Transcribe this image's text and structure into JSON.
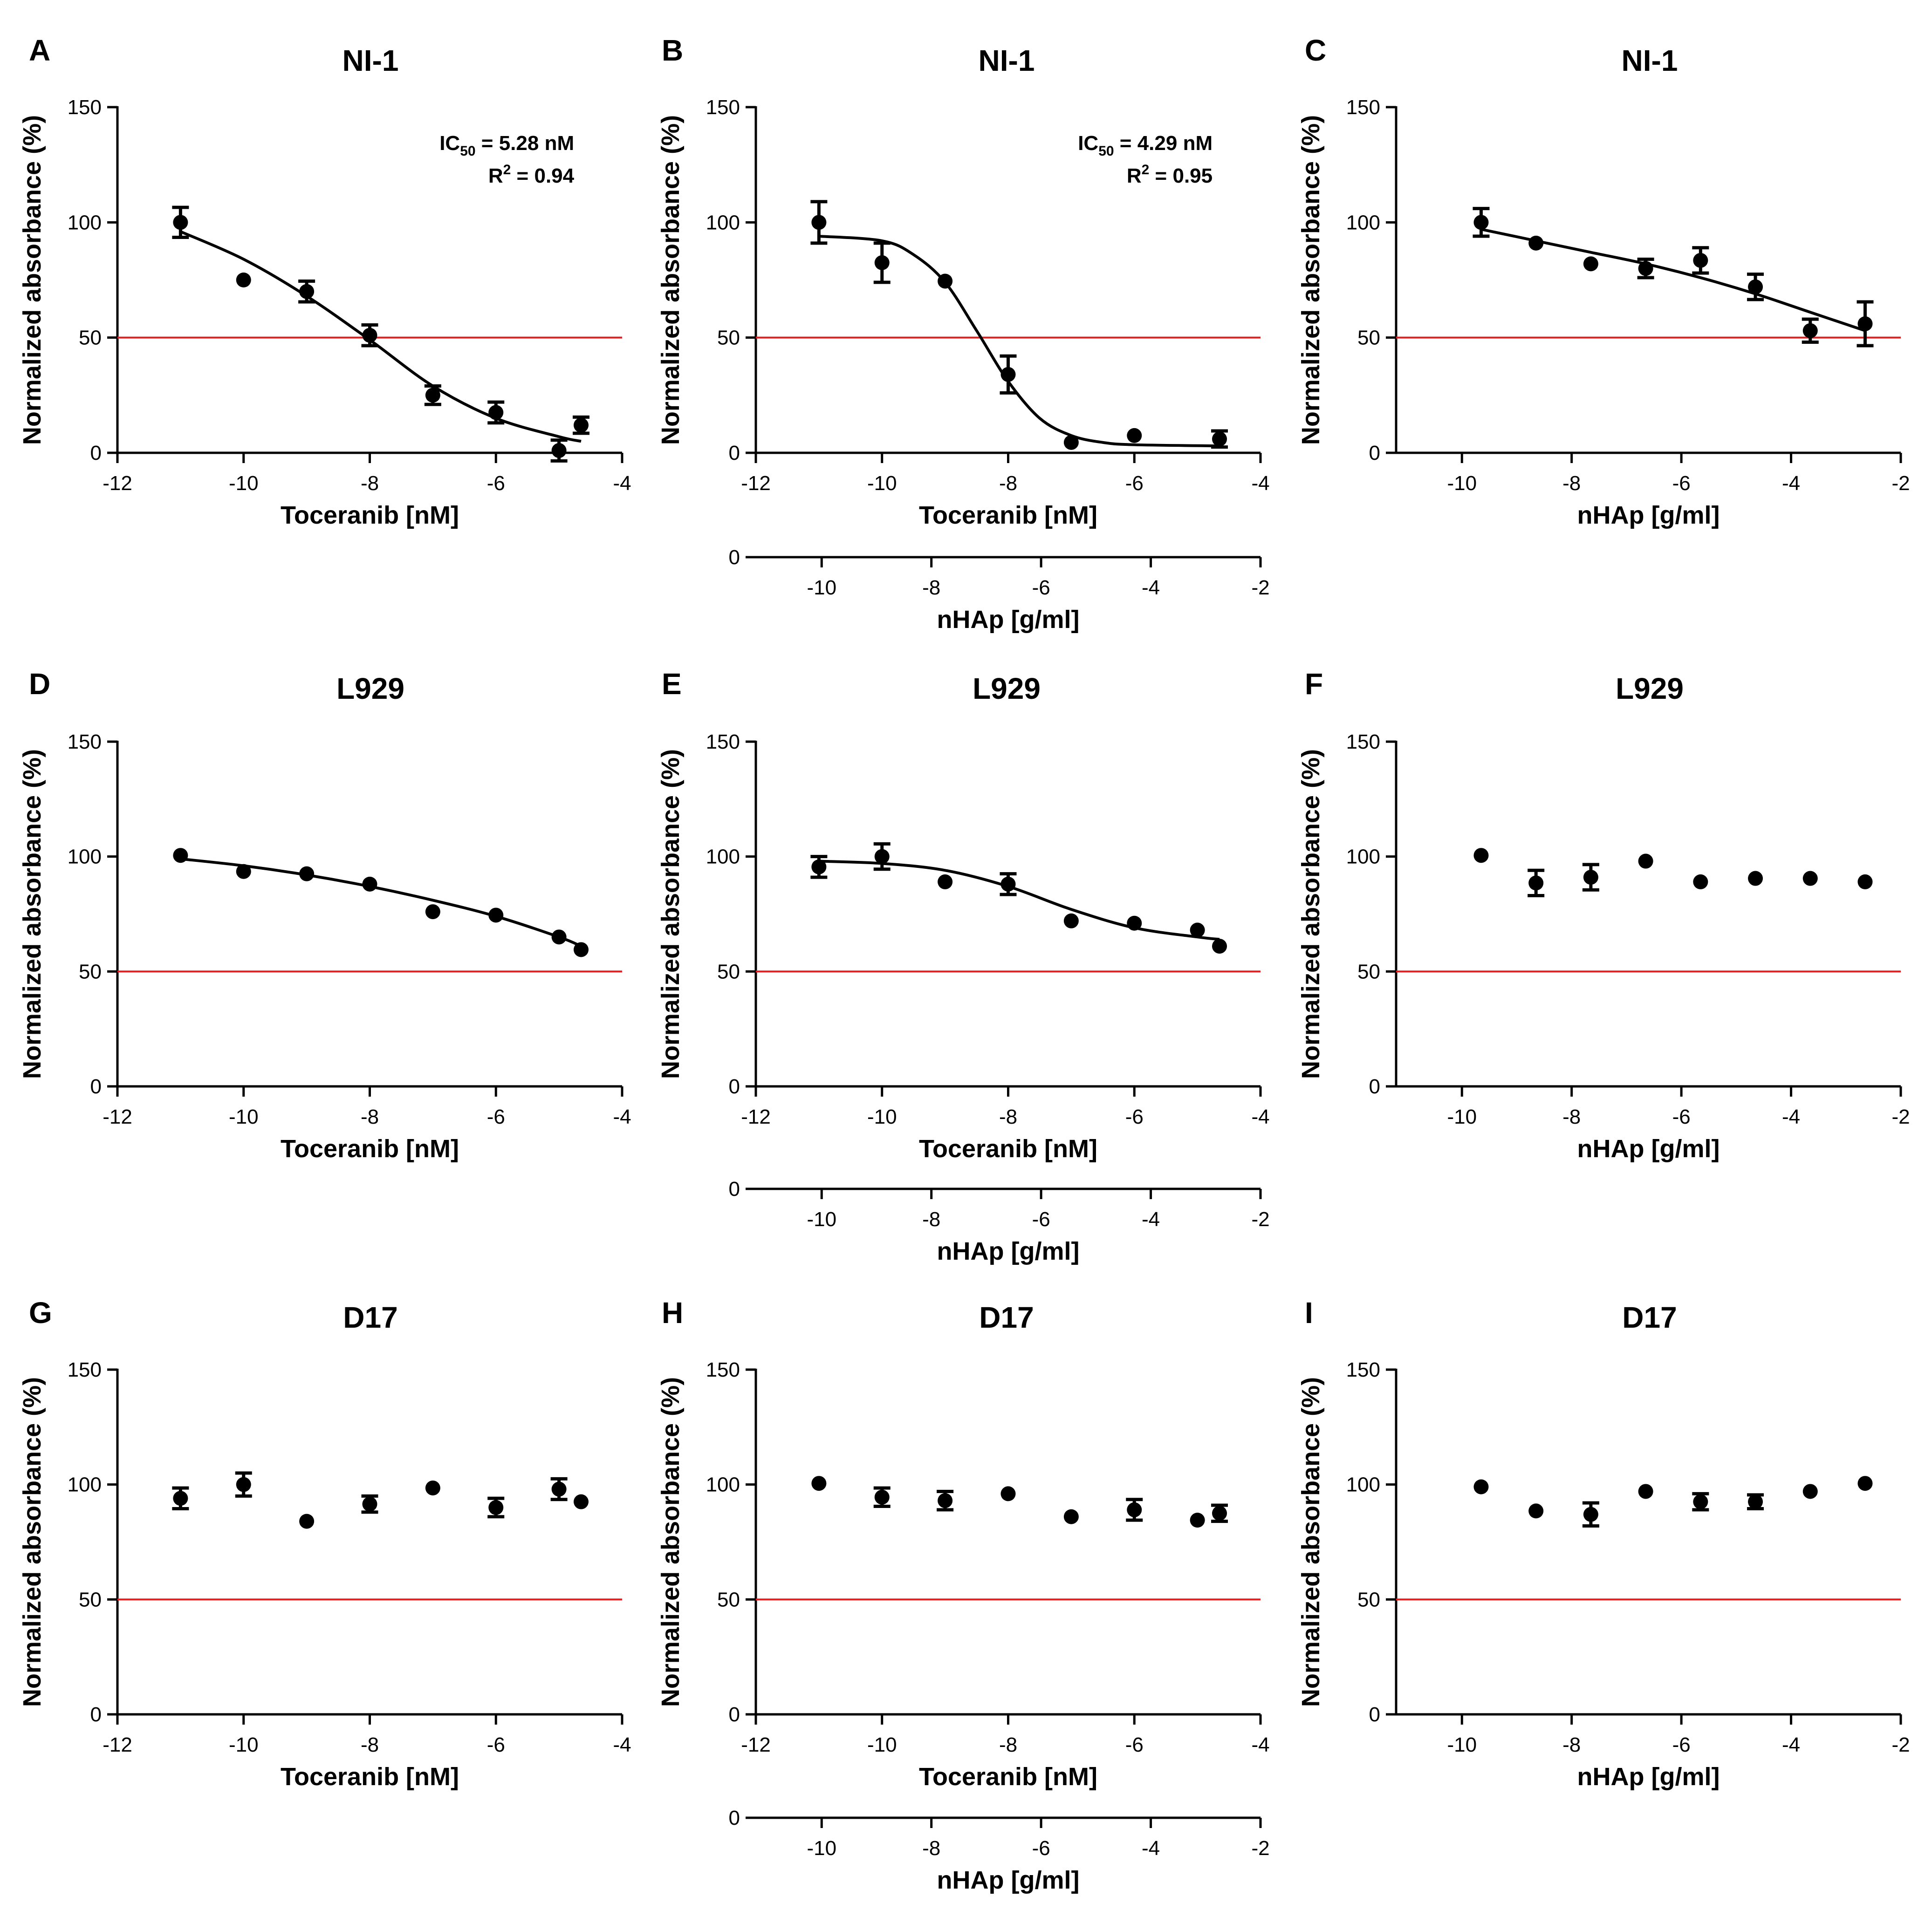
{
  "figure": {
    "panel_count": 9
  },
  "colors": {
    "threshold": "#e02020",
    "marker": "#000000",
    "axis": "#000000"
  },
  "chart_data": [
    {
      "panel": "A",
      "type": "scatter",
      "title": "NI-1",
      "xlabel": "Toceranib [nM]",
      "ylabel": "Normalized absorbance (%)",
      "xlim": [
        -12,
        -4
      ],
      "ylim": [
        0,
        150
      ],
      "xticks": [
        -12,
        -10,
        -8,
        -6,
        -4
      ],
      "yticks": [
        0,
        50,
        100,
        150
      ],
      "threshold": 50,
      "points": [
        {
          "x": -11,
          "y": 100,
          "err": 6.5
        },
        {
          "x": -10,
          "y": 75,
          "err": 0
        },
        {
          "x": -9,
          "y": 70,
          "err": 4.5
        },
        {
          "x": -8,
          "y": 51,
          "err": 4.5
        },
        {
          "x": -7,
          "y": 25,
          "err": 4
        },
        {
          "x": -6,
          "y": 17.5,
          "err": 4.5
        },
        {
          "x": -5,
          "y": 1,
          "err": 4.5
        },
        {
          "x": -4.65,
          "y": 12,
          "err": 3.5
        }
      ],
      "fit": [
        [
          -11,
          96
        ],
        [
          -10,
          84
        ],
        [
          -9,
          68
        ],
        [
          -8,
          49
        ],
        [
          -7,
          29
        ],
        [
          -6,
          15
        ],
        [
          -5,
          7
        ],
        [
          -4.65,
          5
        ]
      ],
      "annotation": {
        "ic_prefix": "IC",
        "ic_sub": "50",
        "ic_value": " = 5.28 nM",
        "r_prefix": "R",
        "r_sup": "2",
        "r_value": " = 0.94"
      }
    },
    {
      "panel": "B",
      "type": "scatter",
      "title": "NI-1",
      "xlabel": "Toceranib [nM]",
      "ylabel": "Normalized absorbance (%)",
      "xlim": [
        -12,
        -4
      ],
      "ylim": [
        0,
        150
      ],
      "xticks": [
        -12,
        -10,
        -8,
        -6,
        -4
      ],
      "yticks": [
        0,
        50,
        100,
        150
      ],
      "threshold": 50,
      "points": [
        {
          "x": -11,
          "y": 100,
          "err": 9
        },
        {
          "x": -10,
          "y": 82.5,
          "err": 8.5
        },
        {
          "x": -9,
          "y": 74.5,
          "err": 0
        },
        {
          "x": -8,
          "y": 34,
          "err": 8
        },
        {
          "x": -7,
          "y": 4.5,
          "err": 0
        },
        {
          "x": -6,
          "y": 7.5,
          "err": 0
        },
        {
          "x": -4.65,
          "y": 6,
          "err": 3.5
        }
      ],
      "fit": [
        [
          -11,
          94
        ],
        [
          -10,
          92
        ],
        [
          -9.5,
          86
        ],
        [
          -9,
          74
        ],
        [
          -8.5,
          53
        ],
        [
          -8,
          31
        ],
        [
          -7.5,
          15
        ],
        [
          -7,
          7.5
        ],
        [
          -6.5,
          4.5
        ],
        [
          -6,
          3.5
        ],
        [
          -4.65,
          3
        ]
      ],
      "annotation": {
        "ic_prefix": "IC",
        "ic_sub": "50",
        "ic_value": " = 4.29 nM",
        "r_prefix": "R",
        "r_sup": "2",
        "r_value": " = 0.95"
      },
      "secondary_axis": {
        "label": "nHAp [g/ml]",
        "xlim": [
          -11.2,
          -2
        ],
        "xticks": [
          -10,
          -8,
          -6,
          -4,
          -2
        ],
        "zero_label": "0"
      }
    },
    {
      "panel": "C",
      "type": "scatter",
      "title": "NI-1",
      "xlabel": "nHAp [g/ml]",
      "ylabel": "Normalized absorbance (%)",
      "xlim": [
        -11.2,
        -2
      ],
      "ylim": [
        0,
        150
      ],
      "xticks": [
        -10,
        -8,
        -6,
        -4,
        -2
      ],
      "yticks": [
        0,
        50,
        100,
        150
      ],
      "threshold": 50,
      "points": [
        {
          "x": -9.65,
          "y": 100,
          "err": 6
        },
        {
          "x": -8.65,
          "y": 91,
          "err": 0
        },
        {
          "x": -7.65,
          "y": 82,
          "err": 0
        },
        {
          "x": -6.65,
          "y": 80,
          "err": 4
        },
        {
          "x": -5.65,
          "y": 83.5,
          "err": 5.5
        },
        {
          "x": -4.65,
          "y": 72,
          "err": 5.5
        },
        {
          "x": -3.65,
          "y": 53,
          "err": 5
        },
        {
          "x": -2.65,
          "y": 56,
          "err": 9.5
        }
      ],
      "fit": [
        [
          -9.65,
          97
        ],
        [
          -8.65,
          92
        ],
        [
          -7.65,
          87
        ],
        [
          -6.65,
          82
        ],
        [
          -5.65,
          76
        ],
        [
          -4.65,
          69
        ],
        [
          -3.65,
          61
        ],
        [
          -2.65,
          53
        ]
      ]
    },
    {
      "panel": "D",
      "type": "scatter",
      "title": "L929",
      "xlabel": "Toceranib [nM]",
      "ylabel": "Normalized absorbance (%)",
      "xlim": [
        -12,
        -4
      ],
      "ylim": [
        0,
        150
      ],
      "xticks": [
        -12,
        -10,
        -8,
        -6,
        -4
      ],
      "yticks": [
        0,
        50,
        100,
        150
      ],
      "threshold": 50,
      "points": [
        {
          "x": -11,
          "y": 100.5,
          "err": 0
        },
        {
          "x": -10,
          "y": 93.5,
          "err": 0
        },
        {
          "x": -9,
          "y": 92.5,
          "err": 0
        },
        {
          "x": -8,
          "y": 88,
          "err": 0
        },
        {
          "x": -7,
          "y": 76,
          "err": 0
        },
        {
          "x": -6,
          "y": 74.5,
          "err": 0
        },
        {
          "x": -5,
          "y": 65,
          "err": 0
        },
        {
          "x": -4.65,
          "y": 59.5,
          "err": 0
        }
      ],
      "fit": [
        [
          -11,
          99
        ],
        [
          -10,
          96
        ],
        [
          -9,
          92
        ],
        [
          -8,
          87
        ],
        [
          -7,
          81
        ],
        [
          -6,
          74
        ],
        [
          -5,
          65
        ],
        [
          -4.65,
          61
        ]
      ]
    },
    {
      "panel": "E",
      "type": "scatter",
      "title": "L929",
      "xlabel": "Toceranib [nM]",
      "ylabel": "Normalized absorbance (%)",
      "xlim": [
        -12,
        -4
      ],
      "ylim": [
        0,
        150
      ],
      "xticks": [
        -12,
        -10,
        -8,
        -6,
        -4
      ],
      "yticks": [
        0,
        50,
        100,
        150
      ],
      "threshold": 50,
      "points": [
        {
          "x": -11,
          "y": 95.5,
          "err": 4.5
        },
        {
          "x": -10,
          "y": 100,
          "err": 5.5
        },
        {
          "x": -9,
          "y": 89,
          "err": 0
        },
        {
          "x": -8,
          "y": 88,
          "err": 4.5
        },
        {
          "x": -7,
          "y": 72,
          "err": 0
        },
        {
          "x": -6,
          "y": 71,
          "err": 0
        },
        {
          "x": -5,
          "y": 68,
          "err": 0
        },
        {
          "x": -4.65,
          "y": 61,
          "err": 0
        }
      ],
      "fit": [
        [
          -11,
          98
        ],
        [
          -10,
          97
        ],
        [
          -9,
          94
        ],
        [
          -8,
          87
        ],
        [
          -7,
          77
        ],
        [
          -6,
          69
        ],
        [
          -5,
          65
        ],
        [
          -4.65,
          64
        ]
      ],
      "secondary_axis": {
        "label": "nHAp [g/ml]",
        "xlim": [
          -11.2,
          -2
        ],
        "xticks": [
          -10,
          -8,
          -6,
          -4,
          -2
        ],
        "zero_label": "0"
      }
    },
    {
      "panel": "F",
      "type": "scatter",
      "title": "L929",
      "xlabel": "nHAp [g/ml]",
      "ylabel": "Normalized absorbance (%)",
      "xlim": [
        -11.2,
        -2
      ],
      "ylim": [
        0,
        150
      ],
      "xticks": [
        -10,
        -8,
        -6,
        -4,
        -2
      ],
      "yticks": [
        0,
        50,
        100,
        150
      ],
      "threshold": 50,
      "points": [
        {
          "x": -9.65,
          "y": 100.5,
          "err": 0
        },
        {
          "x": -8.65,
          "y": 88.5,
          "err": 5.5
        },
        {
          "x": -7.65,
          "y": 91,
          "err": 5.5
        },
        {
          "x": -6.65,
          "y": 98,
          "err": 0
        },
        {
          "x": -5.65,
          "y": 89,
          "err": 0
        },
        {
          "x": -4.65,
          "y": 90.5,
          "err": 0
        },
        {
          "x": -3.65,
          "y": 90.5,
          "err": 0
        },
        {
          "x": -2.65,
          "y": 89,
          "err": 0
        }
      ]
    },
    {
      "panel": "G",
      "type": "scatter",
      "title": "D17",
      "xlabel": "Toceranib [nM]",
      "ylabel": "Normalized absorbance (%)",
      "xlim": [
        -12,
        -4
      ],
      "ylim": [
        0,
        150
      ],
      "xticks": [
        -12,
        -10,
        -8,
        -6,
        -4
      ],
      "yticks": [
        0,
        50,
        100,
        150
      ],
      "threshold": 50,
      "points": [
        {
          "x": -11,
          "y": 94,
          "err": 4.5
        },
        {
          "x": -10,
          "y": 100,
          "err": 5
        },
        {
          "x": -9,
          "y": 84,
          "err": 0
        },
        {
          "x": -8,
          "y": 91.5,
          "err": 3.5
        },
        {
          "x": -7,
          "y": 98.5,
          "err": 0
        },
        {
          "x": -6,
          "y": 90,
          "err": 4
        },
        {
          "x": -5,
          "y": 98,
          "err": 4.5
        },
        {
          "x": -4.65,
          "y": 92.5,
          "err": 0
        }
      ]
    },
    {
      "panel": "H",
      "type": "scatter",
      "title": "D17",
      "xlabel": "Toceranib [nM]",
      "ylabel": "Normalized absorbance (%)",
      "xlim": [
        -12,
        -4
      ],
      "ylim": [
        0,
        150
      ],
      "xticks": [
        -12,
        -10,
        -8,
        -6,
        -4
      ],
      "yticks": [
        0,
        50,
        100,
        150
      ],
      "threshold": 50,
      "points": [
        {
          "x": -11,
          "y": 100.5,
          "err": 0
        },
        {
          "x": -10,
          "y": 94.5,
          "err": 4
        },
        {
          "x": -9,
          "y": 93,
          "err": 4
        },
        {
          "x": -8,
          "y": 96,
          "err": 0
        },
        {
          "x": -7,
          "y": 86,
          "err": 0
        },
        {
          "x": -6,
          "y": 89,
          "err": 4.5
        },
        {
          "x": -5,
          "y": 84.5,
          "err": 0
        },
        {
          "x": -4.65,
          "y": 87.5,
          "err": 3.5
        }
      ],
      "secondary_axis": {
        "label": "nHAp [g/ml]",
        "xlim": [
          -11.2,
          -2
        ],
        "xticks": [
          -10,
          -8,
          -6,
          -4,
          -2
        ],
        "zero_label": "0"
      }
    },
    {
      "panel": "I",
      "type": "scatter",
      "title": "D17",
      "xlabel": "nHAp [g/ml]",
      "ylabel": "Normalized absorbance (%)",
      "xlim": [
        -11.2,
        -2
      ],
      "ylim": [
        0,
        150
      ],
      "xticks": [
        -10,
        -8,
        -6,
        -4,
        -2
      ],
      "yticks": [
        0,
        50,
        100,
        150
      ],
      "threshold": 50,
      "points": [
        {
          "x": -9.65,
          "y": 99,
          "err": 0
        },
        {
          "x": -8.65,
          "y": 88.5,
          "err": 0
        },
        {
          "x": -7.65,
          "y": 87,
          "err": 5
        },
        {
          "x": -6.65,
          "y": 97,
          "err": 0
        },
        {
          "x": -5.65,
          "y": 92.5,
          "err": 3.5
        },
        {
          "x": -4.65,
          "y": 92.5,
          "err": 3
        },
        {
          "x": -3.65,
          "y": 97,
          "err": 0
        },
        {
          "x": -2.65,
          "y": 100.5,
          "err": 0
        }
      ]
    }
  ]
}
